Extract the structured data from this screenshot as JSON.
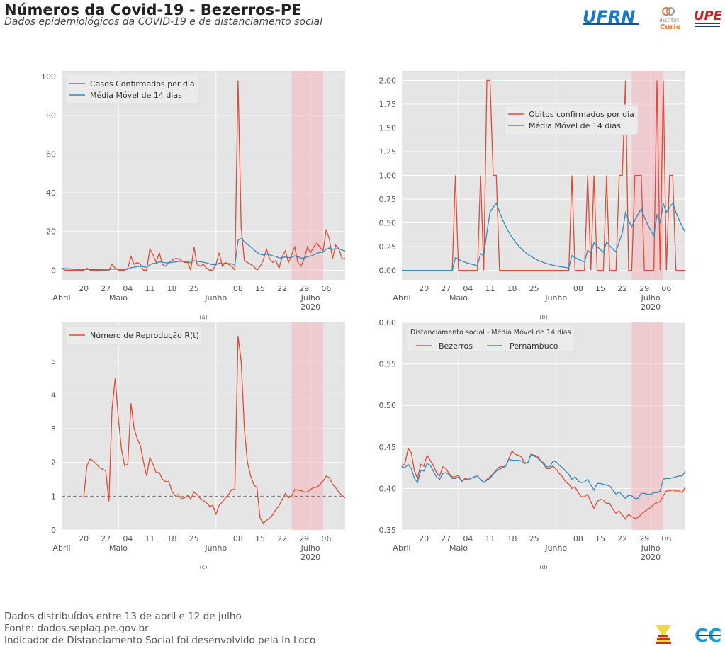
{
  "header": {
    "title": "Números da Covid-19 - Bezerros-PE",
    "subtitle": "Dados epidemiológicos  da COVID-19 e de distanciamento social"
  },
  "logos": {
    "ufrn": "UFRN",
    "curie_top": "institut",
    "curie_bottom": "Curie",
    "upe": "UPE"
  },
  "footer": {
    "line1": "Dados distribuídos entre 13 de abril e 12 de julho",
    "line2": "Fonte: dados.seplag.pe.gov.br",
    "line3": "Indicador de Distanciamento Social foi desenvolvido pela In Loco"
  },
  "colors": {
    "red": "#E24A33",
    "blue": "#348ABD",
    "bg": "#E5E5E5",
    "shade": "#F4B6BC"
  },
  "chart_data": [
    {
      "id": "a",
      "type": "line",
      "caption": "(a)",
      "ylim": [
        -5,
        103
      ],
      "yticks": [
        0,
        20,
        40,
        60,
        80,
        100
      ],
      "ytick_labels": [
        "0",
        "20",
        "40",
        "60",
        "80",
        "100"
      ],
      "legend": {
        "placement": "upper-left",
        "entries": [
          "Casos Confirmados por dia",
          "Média Móvel de 14 dias"
        ]
      },
      "series": [
        {
          "name": "Casos Confirmados por dia",
          "color": "red",
          "values": [
            1,
            0,
            0,
            0,
            0,
            0,
            0,
            0,
            1,
            0,
            0,
            0,
            0,
            0,
            0,
            0,
            3,
            1,
            0,
            0,
            0,
            1,
            7,
            3,
            4,
            3,
            0,
            0,
            11,
            8,
            4,
            9,
            3,
            2,
            4,
            5,
            6,
            6,
            5,
            4,
            4,
            0,
            12,
            3,
            2,
            3,
            1,
            0,
            0,
            3,
            9,
            2,
            4,
            3,
            2,
            0,
            98,
            22,
            5,
            4,
            3,
            2,
            0,
            2,
            5,
            11,
            6,
            4,
            5,
            1,
            7,
            10,
            4,
            8,
            12,
            4,
            2,
            6,
            12,
            9,
            12,
            14,
            12,
            10,
            21,
            16,
            6,
            13,
            11,
            6,
            6
          ]
        },
        {
          "name": "Média Móvel de 14 dias",
          "color": "blue",
          "derived_from": 0,
          "ewm_span": 14
        }
      ]
    },
    {
      "id": "b",
      "type": "line",
      "caption": "(b)",
      "ylim": [
        -0.1,
        2.1
      ],
      "yticks": [
        0,
        0.25,
        0.5,
        0.75,
        1.0,
        1.25,
        1.5,
        1.75,
        2.0
      ],
      "ytick_labels": [
        "0.00",
        "0.25",
        "0.50",
        "0.75",
        "1.00",
        "1.25",
        "1.50",
        "1.75",
        "2.00"
      ],
      "legend": {
        "placement": "upper-center",
        "entries": [
          "Óbitos confirmados por dia",
          "Média Móvel de 14 dias"
        ]
      },
      "series": [
        {
          "name": "Óbitos confirmados por dia",
          "color": "red",
          "values": [
            0,
            0,
            0,
            0,
            0,
            0,
            0,
            0,
            0,
            0,
            0,
            0,
            0,
            0,
            0,
            0,
            0,
            1,
            0,
            0,
            0,
            0,
            0,
            0,
            0,
            1,
            0,
            2,
            2,
            1,
            1,
            0,
            0,
            0,
            0,
            0,
            0,
            0,
            0,
            0,
            0,
            0,
            0,
            0,
            0,
            0,
            0,
            0,
            0,
            0,
            0,
            0,
            0,
            0,
            1,
            0,
            0,
            0,
            0,
            1,
            0,
            1,
            0,
            0,
            0,
            1,
            0,
            0,
            0,
            1,
            1,
            2,
            0,
            0,
            1,
            1,
            1,
            0,
            0,
            0,
            0,
            2,
            0,
            2,
            0,
            1,
            1,
            0,
            0,
            0,
            0
          ]
        },
        {
          "name": "Média Móvel de 14 dias",
          "color": "blue",
          "derived_from": 0,
          "ewm_span": 14
        }
      ]
    },
    {
      "id": "c",
      "type": "line",
      "caption": "(c)",
      "ylim": [
        0,
        6.15
      ],
      "yticks": [
        0,
        1,
        2,
        3,
        4,
        5
      ],
      "ytick_labels": [
        "0",
        "1",
        "2",
        "3",
        "4",
        "5"
      ],
      "reference_line": 1,
      "legend": {
        "placement": "upper-left",
        "entries": [
          "Número de Reprodução R(t)"
        ]
      },
      "series": [
        {
          "name": "Número de Reprodução R(t)",
          "color": "red",
          "values": [
            null,
            null,
            null,
            null,
            null,
            null,
            null,
            0.95,
            1.9,
            2.1,
            2.05,
            1.95,
            1.85,
            1.8,
            1.75,
            0.85,
            3.6,
            4.5,
            3.3,
            2.4,
            1.9,
            1.95,
            3.75,
            3.0,
            2.7,
            2.5,
            2.0,
            1.6,
            2.15,
            1.95,
            1.7,
            1.7,
            1.5,
            1.43,
            1.44,
            1.15,
            1.02,
            1.05,
            0.93,
            0.95,
            1.02,
            0.92,
            1.13,
            1.05,
            0.93,
            0.87,
            0.8,
            0.7,
            0.73,
            0.47,
            0.73,
            0.83,
            0.95,
            1.05,
            1.2,
            1.2,
            5.75,
            5.0,
            3.0,
            2.0,
            1.6,
            1.35,
            1.25,
            0.35,
            0.2,
            0.28,
            0.35,
            0.45,
            0.6,
            0.72,
            0.9,
            1.08,
            0.95,
            1.0,
            1.2,
            1.18,
            1.17,
            1.12,
            1.13,
            1.2,
            1.26,
            1.26,
            1.35,
            1.45,
            1.6,
            1.55,
            1.35,
            1.25,
            1.12,
            1.02,
            0.95
          ]
        }
      ]
    },
    {
      "id": "d",
      "type": "line",
      "caption": "(d)",
      "ylim": [
        0.35,
        0.6
      ],
      "yticks": [
        0.35,
        0.4,
        0.45,
        0.5,
        0.55,
        0.6
      ],
      "ytick_labels": [
        "0.35",
        "0.40",
        "0.45",
        "0.50",
        "0.55",
        "0.60"
      ],
      "legend": {
        "placement": "upper-left",
        "title": "Distanciamento social - Média Móvel de 14 dias",
        "entries": [
          "Bezerros",
          "Pernambuco"
        ]
      },
      "series": [
        {
          "name": "Bezerros",
          "color": "red",
          "values": [
            0.426,
            0.43,
            0.448,
            0.443,
            0.421,
            0.412,
            0.429,
            0.427,
            0.44,
            0.434,
            0.428,
            0.419,
            0.415,
            0.426,
            0.424,
            0.418,
            0.414,
            0.414,
            0.416,
            0.408,
            0.412,
            0.411,
            0.412,
            0.414,
            0.415,
            0.411,
            0.407,
            0.411,
            0.414,
            0.418,
            0.422,
            0.426,
            0.426,
            0.427,
            0.436,
            0.445,
            0.441,
            0.44,
            0.438,
            0.431,
            0.431,
            0.441,
            0.44,
            0.439,
            0.434,
            0.429,
            0.424,
            0.424,
            0.427,
            0.423,
            0.418,
            0.414,
            0.408,
            0.405,
            0.4,
            0.402,
            0.395,
            0.39,
            0.39,
            0.393,
            0.384,
            0.376,
            0.384,
            0.387,
            0.386,
            0.382,
            0.382,
            0.375,
            0.37,
            0.373,
            0.368,
            0.363,
            0.369,
            0.366,
            0.364,
            0.365,
            0.369,
            0.372,
            0.375,
            0.377,
            0.381,
            0.383,
            0.384,
            0.391,
            0.397,
            0.397,
            0.398,
            0.397,
            0.397,
            0.395,
            0.402
          ]
        },
        {
          "name": "Pernambuco",
          "color": "blue",
          "values": [
            0.426,
            0.425,
            0.429,
            0.424,
            0.412,
            0.407,
            0.422,
            0.421,
            0.43,
            0.428,
            0.421,
            0.414,
            0.411,
            0.418,
            0.419,
            0.417,
            0.412,
            0.412,
            0.414,
            0.409,
            0.411,
            0.411,
            0.412,
            0.414,
            0.415,
            0.411,
            0.407,
            0.41,
            0.412,
            0.417,
            0.421,
            0.423,
            0.425,
            0.427,
            0.435,
            0.434,
            0.434,
            0.434,
            0.433,
            0.43,
            0.431,
            0.441,
            0.439,
            0.437,
            0.433,
            0.431,
            0.426,
            0.426,
            0.433,
            0.432,
            0.428,
            0.425,
            0.421,
            0.417,
            0.411,
            0.414,
            0.409,
            0.407,
            0.408,
            0.411,
            0.404,
            0.398,
            0.406,
            0.406,
            0.405,
            0.404,
            0.403,
            0.398,
            0.393,
            0.396,
            0.392,
            0.388,
            0.392,
            0.391,
            0.388,
            0.388,
            0.394,
            0.394,
            0.393,
            0.393,
            0.395,
            0.395,
            0.397,
            0.411,
            0.412,
            0.412,
            0.413,
            0.414,
            0.415,
            0.415,
            0.421
          ]
        }
      ]
    }
  ],
  "x_axis": {
    "start_date": "2020-04-13",
    "days": 91,
    "ticks": [
      {
        "day": 7,
        "label": "20"
      },
      {
        "day": 14,
        "label": "27"
      },
      {
        "day": 21,
        "label": "04"
      },
      {
        "day": 28,
        "label": "11"
      },
      {
        "day": 35,
        "label": "18"
      },
      {
        "day": 42,
        "label": "25"
      },
      {
        "day": 56,
        "label": "08"
      },
      {
        "day": 63,
        "label": "15"
      },
      {
        "day": 70,
        "label": "22"
      },
      {
        "day": 77,
        "label": "29"
      },
      {
        "day": 84,
        "label": "06"
      }
    ],
    "months": [
      {
        "day": 0,
        "label": "Abril"
      },
      {
        "day": 18,
        "label": "Maio"
      },
      {
        "day": 49,
        "label": "Junho"
      },
      {
        "day": 79,
        "label": "Julho",
        "year": "2020"
      }
    ],
    "shaded_range_days": [
      73,
      83
    ]
  }
}
